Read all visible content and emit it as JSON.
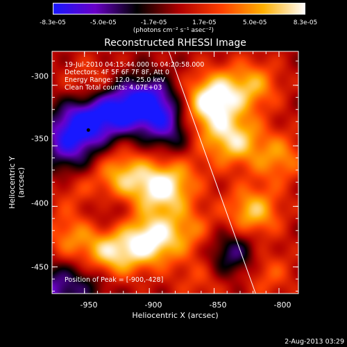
{
  "colorbar": {
    "ticks": [
      "-8.3e-05",
      "-5.0e-05",
      "-1.7e-05",
      "1.7e-05",
      "5.0e-05",
      "8.3e-05"
    ],
    "units": "(photons cm⁻² s⁻¹ asec⁻²)",
    "range": [
      -8.3e-05,
      8.3e-05
    ],
    "colors": [
      "#1818ff",
      "#6a00c8",
      "#000000",
      "#b00000",
      "#ff4000",
      "#ffb000",
      "#ffffff"
    ]
  },
  "chart_data": {
    "type": "heatmap",
    "title": "Reconstructed RHESSI Image",
    "xlabel": "Heliocentric X (arcsec)",
    "ylabel": "Heliocentric Y (arcsec)",
    "xlim": [
      -975,
      -785
    ],
    "ylim": [
      -472,
      -272
    ],
    "xticks": [
      "-950",
      "-900",
      "-850",
      "-800"
    ],
    "yticks": [
      "-300",
      "-350",
      "-400",
      "-450"
    ],
    "info_lines": [
      "19-Jul-2010 04:15:44.000 to 04:20:58.000",
      "Detectors: 4F 5F 6F 7F 8F, Att 0",
      "Energy Range: 12.0 - 25.0 keV",
      "Clean    Total counts: 4.07E+03"
    ],
    "peak_label": "Position of Peak = [-900,-428]",
    "blobs": [
      {
        "x": -945,
        "y": -300,
        "v": 0.35
      },
      {
        "x": -950,
        "y": -330,
        "v": -0.85
      },
      {
        "x": -925,
        "y": -320,
        "v": -0.8
      },
      {
        "x": -900,
        "y": -315,
        "v": -0.9
      },
      {
        "x": -880,
        "y": -335,
        "v": -0.75
      },
      {
        "x": -965,
        "y": -345,
        "v": -0.5
      },
      {
        "x": -850,
        "y": -310,
        "v": 0.95
      },
      {
        "x": -820,
        "y": -300,
        "v": 0.6
      },
      {
        "x": -835,
        "y": -345,
        "v": 0.8
      },
      {
        "x": -865,
        "y": -330,
        "v": 0.55
      },
      {
        "x": -890,
        "y": -385,
        "v": 0.95
      },
      {
        "x": -920,
        "y": -375,
        "v": 0.7
      },
      {
        "x": -955,
        "y": -385,
        "v": 0.35
      },
      {
        "x": -935,
        "y": -405,
        "v": -0.25
      },
      {
        "x": -900,
        "y": -428,
        "v": 1.0
      },
      {
        "x": -930,
        "y": -440,
        "v": 0.85
      },
      {
        "x": -960,
        "y": -425,
        "v": 0.5
      },
      {
        "x": -870,
        "y": -420,
        "v": 0.45
      },
      {
        "x": -835,
        "y": -440,
        "v": -0.6
      },
      {
        "x": -820,
        "y": -405,
        "v": 0.75
      },
      {
        "x": -800,
        "y": -360,
        "v": 0.55
      },
      {
        "x": -810,
        "y": -455,
        "v": 0.4
      },
      {
        "x": -860,
        "y": -460,
        "v": 0.3
      },
      {
        "x": -945,
        "y": -460,
        "v": -0.35
      },
      {
        "x": -975,
        "y": -470,
        "v": -0.6
      },
      {
        "x": -960,
        "y": -365,
        "v": -0.3
      },
      {
        "x": -870,
        "y": -370,
        "v": 0.2
      }
    ],
    "limb_line": [
      [
        -885,
        -272
      ],
      [
        -818,
        -472
      ]
    ],
    "marker": {
      "x": -947,
      "y": -337
    }
  },
  "timestamp": "2-Aug-2013 03:29"
}
